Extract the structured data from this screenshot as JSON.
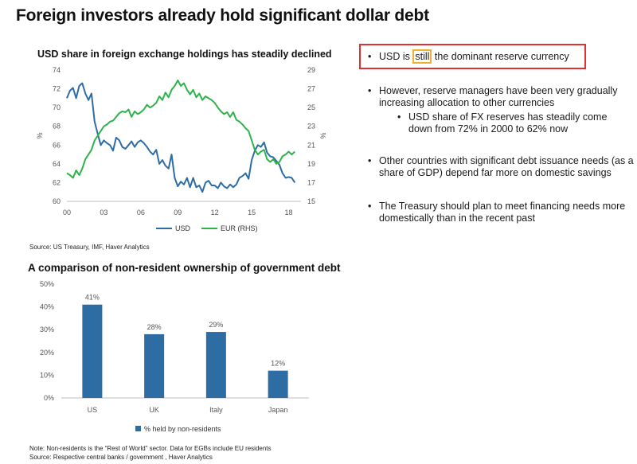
{
  "title": "Foreign investors already hold significant dollar debt",
  "line_chart_title": "USD share in foreign exchange holdings has steadily declined",
  "line_source": "Source: US Treasury, IMF, Haver Analytics",
  "bar_chart_title": "A comparison of non-resident ownership of government debt",
  "bar_note": "Note: Non-residents is the “Rest of World” sector. Data for EGBs include EU residents",
  "bar_source": "Source: Respective central banks / government , Haver Analytics",
  "colors": {
    "usd": "#2e6da4",
    "eur": "#2db34a",
    "bar": "#2e6da4",
    "highlight_box": "#e03030",
    "word_box": "#f0b030"
  },
  "bullets": [
    {
      "text_before": "USD is ",
      "highlight": "still",
      "text_after": " the dominant reserve currency"
    },
    {
      "text": "However, reserve managers have been very gradually increasing allocation to other currencies"
    },
    {
      "text": "USD share of FX reserves has steadily come down from 72% in 2000 to 62% now"
    },
    {
      "text": "Other countries with significant debt issuance needs (as a share of GDP) depend far more on domestic savings"
    },
    {
      "text": "The Treasury should plan to meet financing needs more domestically than in the recent past"
    }
  ],
  "bullet_glyph": "•",
  "sub_bullet_glyph": "•",
  "chart_data": [
    {
      "type": "line",
      "title": "USD share in foreign exchange holdings has steadily declined",
      "ylabel": "%",
      "y2label": "%",
      "ylim": [
        60,
        74
      ],
      "y2lim": [
        15,
        29
      ],
      "xlim": [
        0,
        19
      ],
      "x_ticks": [
        "00",
        "03",
        "06",
        "09",
        "12",
        "15",
        "18"
      ],
      "x_tick_values": [
        0,
        3,
        6,
        9,
        12,
        15,
        18
      ],
      "y_ticks": [
        60,
        62,
        64,
        66,
        68,
        70,
        72,
        74
      ],
      "y2_ticks": [
        15,
        17,
        19,
        21,
        23,
        25,
        27,
        29
      ],
      "legend_position": "bottom",
      "series": [
        {
          "name": "USD",
          "axis": "left",
          "x": [
            0,
            0.25,
            0.5,
            0.75,
            1.0,
            1.25,
            1.5,
            1.75,
            2.0,
            2.25,
            2.5,
            2.75,
            3.0,
            3.25,
            3.5,
            3.75,
            4.0,
            4.25,
            4.5,
            4.75,
            5.0,
            5.25,
            5.5,
            5.75,
            6.0,
            6.25,
            6.5,
            6.75,
            7.0,
            7.25,
            7.5,
            7.75,
            8.0,
            8.25,
            8.5,
            8.75,
            9.0,
            9.25,
            9.5,
            9.75,
            10.0,
            10.25,
            10.5,
            10.75,
            11.0,
            11.25,
            11.5,
            11.75,
            12.0,
            12.25,
            12.5,
            12.75,
            13.0,
            13.25,
            13.5,
            13.75,
            14.0,
            14.25,
            14.5,
            14.75,
            15.0,
            15.25,
            15.5,
            15.75,
            16.0,
            16.25,
            16.5,
            16.75,
            17.0,
            17.25,
            17.5,
            17.75,
            18.0,
            18.25,
            18.5
          ],
          "values": [
            71.0,
            71.8,
            72.1,
            71.0,
            72.3,
            72.6,
            71.5,
            70.8,
            71.5,
            68.5,
            67.2,
            66.0,
            66.5,
            66.2,
            66.0,
            65.4,
            66.8,
            66.5,
            65.8,
            65.6,
            66.0,
            66.4,
            65.8,
            66.3,
            66.5,
            66.2,
            65.8,
            65.3,
            65.0,
            65.5,
            64.0,
            64.4,
            63.8,
            63.5,
            65.0,
            62.5,
            61.6,
            62.1,
            61.8,
            62.5,
            61.5,
            62.5,
            61.5,
            61.7,
            61.0,
            62.0,
            62.2,
            61.7,
            61.7,
            61.4,
            62.0,
            61.6,
            61.4,
            61.8,
            61.5,
            61.8,
            62.5,
            62.7,
            63.0,
            62.4,
            64.4,
            65.4,
            66.0,
            65.8,
            66.3,
            65.2,
            64.8,
            64.7,
            64.3,
            63.9,
            63.0,
            62.5,
            62.6,
            62.5,
            62.0
          ]
        },
        {
          "name": "EUR (RHS)",
          "axis": "right",
          "x": [
            0,
            0.25,
            0.5,
            0.75,
            1.0,
            1.25,
            1.5,
            1.75,
            2.0,
            2.25,
            2.5,
            2.75,
            3.0,
            3.25,
            3.5,
            3.75,
            4.0,
            4.25,
            4.5,
            4.75,
            5.0,
            5.25,
            5.5,
            5.75,
            6.0,
            6.25,
            6.5,
            6.75,
            7.0,
            7.25,
            7.5,
            7.75,
            8.0,
            8.25,
            8.5,
            8.75,
            9.0,
            9.25,
            9.5,
            9.75,
            10.0,
            10.25,
            10.5,
            10.75,
            11.0,
            11.25,
            11.5,
            11.75,
            12.0,
            12.25,
            12.5,
            12.75,
            13.0,
            13.25,
            13.5,
            13.75,
            14.0,
            14.25,
            14.5,
            14.75,
            15.0,
            15.25,
            15.5,
            15.75,
            16.0,
            16.25,
            16.5,
            16.75,
            17.0,
            17.25,
            17.5,
            17.75,
            18.0,
            18.25,
            18.5
          ],
          "values": [
            18.0,
            17.8,
            17.5,
            18.3,
            17.8,
            18.5,
            19.5,
            20.0,
            20.5,
            21.5,
            22.0,
            22.5,
            23.0,
            23.2,
            23.5,
            23.6,
            24.0,
            24.4,
            24.6,
            24.5,
            24.8,
            24.0,
            24.6,
            24.3,
            24.5,
            24.8,
            25.3,
            25.0,
            25.2,
            25.5,
            26.2,
            25.8,
            26.6,
            26.1,
            26.9,
            27.3,
            27.9,
            27.3,
            27.6,
            26.9,
            26.4,
            26.9,
            26.1,
            26.5,
            25.8,
            26.2,
            26.0,
            25.8,
            25.5,
            25.0,
            24.6,
            24.3,
            24.5,
            24.0,
            24.5,
            23.7,
            23.5,
            23.2,
            22.8,
            22.5,
            21.5,
            20.5,
            20.0,
            20.3,
            20.5,
            19.5,
            19.2,
            19.5,
            19.0,
            19.2,
            19.8,
            20.0,
            20.3,
            20.0,
            20.3
          ]
        }
      ]
    },
    {
      "type": "bar",
      "title": "A comparison of non-resident ownership of government debt",
      "categories": [
        "US",
        "UK",
        "Italy",
        "Japan"
      ],
      "ylim": [
        0,
        50
      ],
      "y_ticks": [
        "0%",
        "10%",
        "20%",
        "30%",
        "40%",
        "50%"
      ],
      "y_tick_values": [
        0,
        10,
        20,
        30,
        40,
        50
      ],
      "legend_position": "bottom",
      "series": [
        {
          "name": "% held by non-residents",
          "values": [
            41,
            28,
            29,
            12
          ],
          "labels": [
            "41%",
            "28%",
            "29%",
            "12%"
          ]
        }
      ]
    }
  ]
}
